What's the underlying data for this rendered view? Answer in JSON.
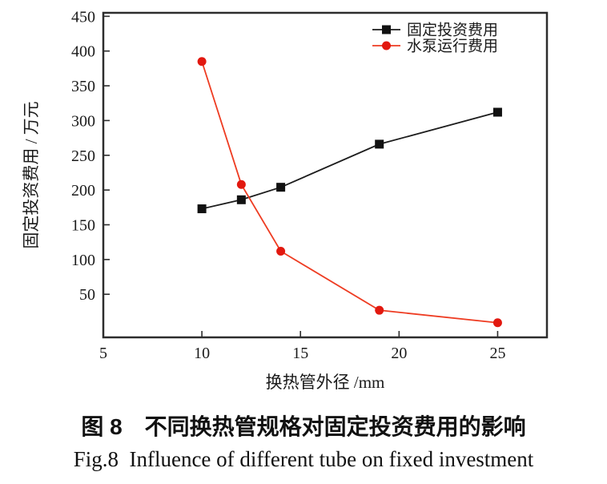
{
  "figure": {
    "background": "#ffffff"
  },
  "captions": {
    "zh": "图 8　不同换热管规格对固定投资费用的影响",
    "en": "Fig.8  Influence of different tube on fixed investment"
  },
  "chart_data": {
    "type": "line",
    "title": "",
    "xlabel": "换热管外径 /mm",
    "ylabel": "固定投资费用 / 万元",
    "xlim": [
      5,
      27.5
    ],
    "ylim": [
      -12,
      455
    ],
    "x_ticks": [
      5,
      10,
      15,
      20,
      25
    ],
    "y_ticks": [
      50,
      100,
      150,
      200,
      250,
      300,
      350,
      400,
      450
    ],
    "grid": false,
    "legend_position": "top-right",
    "axis_color": "#2d2d2d",
    "text_color": "#1a1a1a",
    "x": [
      10,
      12,
      14,
      19,
      25
    ],
    "series": [
      {
        "name": "固定投资费用",
        "values": [
          173,
          186,
          204,
          266,
          312
        ],
        "line_color": "#1c1c1c",
        "marker_color": "#111111",
        "marker": "square"
      },
      {
        "name": "水泵运行费用",
        "values": [
          385,
          208,
          112,
          27,
          9
        ],
        "line_color": "#ee3c22",
        "marker_color": "#e2180f",
        "marker": "circle"
      }
    ]
  }
}
